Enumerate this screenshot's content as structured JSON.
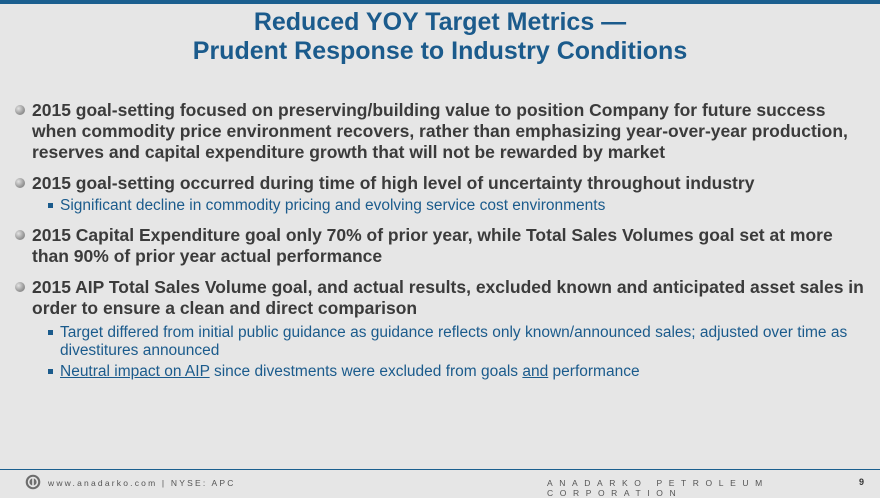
{
  "title": {
    "line1": "Reduced YOY Target Metrics —",
    "line2": "Prudent Response to Industry Conditions"
  },
  "bullets": [
    {
      "text": "2015 goal-setting focused on preserving/building value to position Company for future success when commodity price environment recovers, rather than emphasizing year-over-year production, reserves and capital expenditure growth that will not be rewarded by market"
    },
    {
      "text": "2015 goal-setting occurred during time of high level of uncertainty throughout industry",
      "subs": [
        "Significant decline in commodity pricing and evolving service cost environments"
      ]
    },
    {
      "text": "2015 Capital Expenditure goal only 70% of prior year, while Total Sales Volumes goal set at more than 90% of prior year actual performance"
    },
    {
      "text": "2015 AIP Total Sales Volume goal, and actual results, excluded known and anticipated asset sales in order to ensure a clean and direct comparison",
      "subs": [
        "Target differed from initial public guidance as guidance reflects only known/announced sales; adjusted over time as divestitures announced"
      ],
      "sub_last": {
        "part1": "Neutral impact on AIP",
        "part2": " since divestments were excluded from goals ",
        "part3": "and",
        "part4": " performance"
      }
    }
  ],
  "footer": {
    "website": "www.anadarko.com | NYSE: APC",
    "company": "ANADARKO PETROLEUM CORPORATION",
    "page": "9"
  },
  "colors": {
    "title": "#1b5b8c",
    "body": "#3b3b3b",
    "sub": "#1b5b8c",
    "background": "#e6e6e6"
  }
}
